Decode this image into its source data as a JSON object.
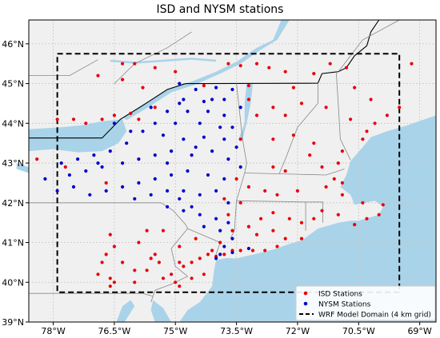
{
  "title": "ISD and NYSM stations",
  "colors": {
    "land": "#f0f0f0",
    "water": "#a9d3e9",
    "isd": "#e8000b",
    "nysm": "#0000cc",
    "grid": "#c8c8c8",
    "border": "#888888"
  },
  "axes": {
    "lon_min": -78.6,
    "lon_max": -68.6,
    "lat_min": 39.0,
    "lat_max": 46.6,
    "x_ticks": [
      {
        "value": -78.0,
        "label": "78°W"
      },
      {
        "value": -76.5,
        "label": "76.5°W"
      },
      {
        "value": -75.0,
        "label": "75°W"
      },
      {
        "value": -73.5,
        "label": "73.5°W"
      },
      {
        "value": -72.0,
        "label": "72°W"
      },
      {
        "value": -70.5,
        "label": "70.5°W"
      },
      {
        "value": -69.0,
        "label": "69°W"
      }
    ],
    "y_ticks": [
      {
        "value": 39,
        "label": "39°N"
      },
      {
        "value": 40,
        "label": "40°N"
      },
      {
        "value": 41,
        "label": "41°N"
      },
      {
        "value": 42,
        "label": "42°N"
      },
      {
        "value": 43,
        "label": "43°N"
      },
      {
        "value": 44,
        "label": "44°N"
      },
      {
        "value": 45,
        "label": "45°N"
      },
      {
        "value": 46,
        "label": "46°N"
      }
    ]
  },
  "domain_box": {
    "lon_min": -77.9,
    "lon_max": -69.5,
    "lat_min": 39.75,
    "lat_max": 45.75
  },
  "legend": {
    "isd": "ISD Stations",
    "nysm": "NYSM Stations",
    "domain": "WRF Model Domain (4 km grid)",
    "placement": "lower-right"
  },
  "chart_data": {
    "type": "scatter",
    "title": "ISD and NYSM stations",
    "xlim": [
      -78.6,
      -68.6
    ],
    "ylim": [
      39.0,
      46.6
    ],
    "grid": true,
    "series": [
      {
        "name": "ISD Stations",
        "points": [
          [
            -76.3,
            45.5
          ],
          [
            -76.0,
            45.5
          ],
          [
            -75.5,
            45.4
          ],
          [
            -75.0,
            45.3
          ],
          [
            -73.7,
            45.5
          ],
          [
            -73.4,
            45.45
          ],
          [
            -73.0,
            45.5
          ],
          [
            -72.7,
            45.4
          ],
          [
            -72.3,
            45.3
          ],
          [
            -71.6,
            45.25
          ],
          [
            -71.2,
            45.5
          ],
          [
            -70.8,
            45.4
          ],
          [
            -69.2,
            45.5
          ],
          [
            -76.9,
            45.2
          ],
          [
            -76.3,
            45.1
          ],
          [
            -75.8,
            44.9
          ],
          [
            -74.3,
            44.95
          ],
          [
            -73.2,
            44.95
          ],
          [
            -72.1,
            44.9
          ],
          [
            -70.6,
            44.9
          ],
          [
            -70.2,
            44.6
          ],
          [
            -77.9,
            44.1
          ],
          [
            -77.5,
            44.1
          ],
          [
            -77.2,
            44.0
          ],
          [
            -76.8,
            44.1
          ],
          [
            -76.5,
            44.2
          ],
          [
            -76.1,
            44.25
          ],
          [
            -75.9,
            44.1
          ],
          [
            -75.5,
            44.4
          ],
          [
            -73.2,
            44.6
          ],
          [
            -72.6,
            44.4
          ],
          [
            -72.3,
            44.2
          ],
          [
            -71.9,
            44.5
          ],
          [
            -71.3,
            44.4
          ],
          [
            -70.7,
            44.1
          ],
          [
            -70.1,
            44.0
          ],
          [
            -69.5,
            44.4
          ],
          [
            -69.8,
            44.2
          ],
          [
            -70.3,
            43.8
          ],
          [
            -70.4,
            43.6
          ],
          [
            -70.9,
            43.3
          ],
          [
            -73.0,
            44.2
          ],
          [
            -73.4,
            43.6
          ],
          [
            -72.6,
            43.6
          ],
          [
            -72.1,
            43.7
          ],
          [
            -71.6,
            43.5
          ],
          [
            -71.0,
            43.0
          ],
          [
            -71.7,
            43.2
          ],
          [
            -72.6,
            42.9
          ],
          [
            -72.3,
            42.8
          ],
          [
            -71.4,
            42.9
          ],
          [
            -71.1,
            42.6
          ],
          [
            -70.9,
            42.5
          ],
          [
            -78.4,
            43.1
          ],
          [
            -77.7,
            42.9
          ],
          [
            -76.7,
            42.5
          ],
          [
            -73.2,
            42.4
          ],
          [
            -72.8,
            42.3
          ],
          [
            -72.5,
            42.2
          ],
          [
            -72.0,
            42.3
          ],
          [
            -71.3,
            42.4
          ],
          [
            -70.9,
            42.2
          ],
          [
            -70.4,
            42.0
          ],
          [
            -69.9,
            41.95
          ],
          [
            -70.0,
            41.7
          ],
          [
            -70.3,
            41.6
          ],
          [
            -70.6,
            41.45
          ],
          [
            -71.0,
            41.7
          ],
          [
            -71.4,
            41.8
          ],
          [
            -71.6,
            41.6
          ],
          [
            -71.9,
            41.5
          ],
          [
            -72.2,
            41.6
          ],
          [
            -72.6,
            41.75
          ],
          [
            -72.9,
            41.6
          ],
          [
            -73.2,
            41.4
          ],
          [
            -73.0,
            41.2
          ],
          [
            -72.6,
            41.3
          ],
          [
            -72.3,
            41.1
          ],
          [
            -71.9,
            41.1
          ],
          [
            -73.5,
            42.6
          ],
          [
            -73.4,
            42.0
          ],
          [
            -73.7,
            41.7
          ],
          [
            -73.8,
            42.1
          ],
          [
            -73.6,
            41.3
          ],
          [
            -73.9,
            41.0
          ],
          [
            -74.5,
            41.1
          ],
          [
            -74.9,
            40.9
          ],
          [
            -75.3,
            41.3
          ],
          [
            -75.7,
            41.3
          ],
          [
            -75.9,
            41.0
          ],
          [
            -76.6,
            41.2
          ],
          [
            -76.5,
            40.9
          ],
          [
            -76.7,
            40.7
          ],
          [
            -76.3,
            40.5
          ],
          [
            -76.0,
            40.3
          ],
          [
            -75.6,
            40.6
          ],
          [
            -75.4,
            40.5
          ],
          [
            -75.1,
            40.2
          ],
          [
            -74.8,
            40.4
          ],
          [
            -74.6,
            40.5
          ],
          [
            -74.4,
            40.6
          ],
          [
            -74.2,
            40.7
          ],
          [
            -74.0,
            40.65
          ],
          [
            -73.8,
            40.7
          ],
          [
            -73.6,
            40.8
          ],
          [
            -73.4,
            40.8
          ],
          [
            -73.1,
            40.8
          ],
          [
            -72.8,
            40.8
          ],
          [
            -72.5,
            40.9
          ],
          [
            -74.1,
            40.8
          ],
          [
            -76.8,
            40.5
          ],
          [
            -76.9,
            40.2
          ],
          [
            -76.6,
            40.1
          ],
          [
            -76.5,
            40.0
          ],
          [
            -76.6,
            39.9
          ],
          [
            -76.0,
            40.0
          ],
          [
            -75.7,
            40.3
          ],
          [
            -75.3,
            40.1
          ],
          [
            -75.0,
            40.0
          ],
          [
            -74.9,
            39.9
          ],
          [
            -74.6,
            40.1
          ],
          [
            -74.3,
            40.2
          ],
          [
            -74.9,
            40.5
          ],
          [
            -75.5,
            40.7
          ]
        ]
      },
      {
        "name": "NYSM Stations",
        "points": [
          [
            -74.9,
            45.0
          ],
          [
            -74.5,
            44.85
          ],
          [
            -74.0,
            44.9
          ],
          [
            -73.6,
            44.85
          ],
          [
            -74.8,
            44.6
          ],
          [
            -74.3,
            44.55
          ],
          [
            -73.8,
            44.6
          ],
          [
            -75.2,
            44.3
          ],
          [
            -74.7,
            44.3
          ],
          [
            -74.2,
            44.3
          ],
          [
            -73.8,
            44.2
          ],
          [
            -75.5,
            44.0
          ],
          [
            -75.0,
            44.0
          ],
          [
            -74.4,
            44.0
          ],
          [
            -73.9,
            43.9
          ],
          [
            -75.8,
            43.8
          ],
          [
            -75.3,
            43.7
          ],
          [
            -74.8,
            43.6
          ],
          [
            -74.3,
            43.65
          ],
          [
            -73.8,
            43.6
          ],
          [
            -73.5,
            43.4
          ],
          [
            -76.2,
            43.5
          ],
          [
            -76.6,
            43.3
          ],
          [
            -77.0,
            43.2
          ],
          [
            -77.4,
            43.1
          ],
          [
            -77.8,
            43.0
          ],
          [
            -77.6,
            42.7
          ],
          [
            -77.2,
            42.8
          ],
          [
            -76.8,
            42.9
          ],
          [
            -76.3,
            43.0
          ],
          [
            -75.9,
            43.1
          ],
          [
            -75.5,
            43.2
          ],
          [
            -75.1,
            43.3
          ],
          [
            -74.6,
            43.2
          ],
          [
            -74.1,
            43.3
          ],
          [
            -73.7,
            43.1
          ],
          [
            -73.4,
            42.9
          ],
          [
            -78.2,
            42.6
          ],
          [
            -77.9,
            42.3
          ],
          [
            -77.5,
            42.4
          ],
          [
            -77.1,
            42.2
          ],
          [
            -76.7,
            42.3
          ],
          [
            -76.3,
            42.4
          ],
          [
            -75.9,
            42.5
          ],
          [
            -75.5,
            42.6
          ],
          [
            -75.1,
            42.7
          ],
          [
            -74.7,
            42.8
          ],
          [
            -74.2,
            42.7
          ],
          [
            -73.8,
            42.6
          ],
          [
            -76.0,
            42.1
          ],
          [
            -75.6,
            42.2
          ],
          [
            -75.2,
            42.3
          ],
          [
            -74.8,
            42.3
          ],
          [
            -74.4,
            42.2
          ],
          [
            -74.0,
            42.3
          ],
          [
            -73.7,
            42.0
          ],
          [
            -75.2,
            41.9
          ],
          [
            -74.8,
            41.8
          ],
          [
            -74.4,
            41.7
          ],
          [
            -74.0,
            41.6
          ],
          [
            -73.7,
            41.5
          ],
          [
            -74.3,
            41.4
          ],
          [
            -73.9,
            41.3
          ],
          [
            -73.6,
            41.1
          ],
          [
            -73.8,
            40.9
          ],
          [
            -73.6,
            40.75
          ],
          [
            -73.9,
            40.7
          ],
          [
            -74.0,
            40.6
          ],
          [
            -73.2,
            40.85
          ],
          [
            -76.5,
            44.0
          ],
          [
            -76.1,
            43.8
          ],
          [
            -76.9,
            43.0
          ],
          [
            -75.6,
            44.4
          ],
          [
            -74.9,
            44.5
          ],
          [
            -74.1,
            44.6
          ],
          [
            -73.4,
            44.4
          ],
          [
            -73.6,
            43.9
          ],
          [
            -74.5,
            43.4
          ],
          [
            -75.2,
            43.0
          ],
          [
            -74.9,
            42.1
          ],
          [
            -74.6,
            41.9
          ]
        ]
      }
    ]
  }
}
